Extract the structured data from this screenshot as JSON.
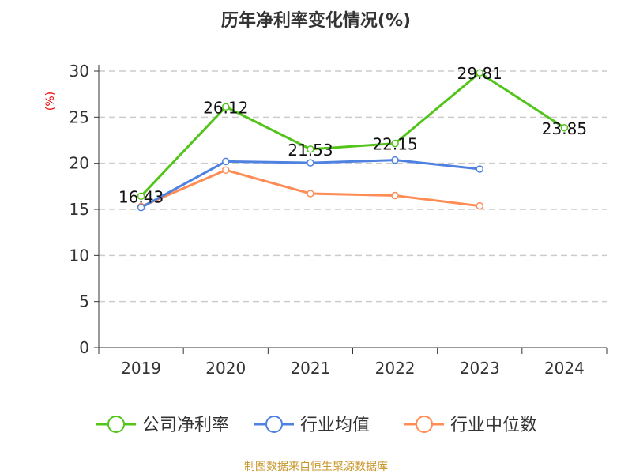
{
  "chart_data": {
    "type": "line",
    "title": "历年净利率变化情况(%)",
    "ylabel": "(%)",
    "xlabel": "",
    "categories": [
      "2019",
      "2020",
      "2021",
      "2022",
      "2023",
      "2024"
    ],
    "ylim": [
      0,
      30
    ],
    "yticks": [
      0,
      5,
      10,
      15,
      20,
      25,
      30
    ],
    "grid": true,
    "legend_position": "bottom",
    "series": [
      {
        "name": "公司净利率",
        "color": "#52c41a",
        "values": [
          16.43,
          26.12,
          21.53,
          22.15,
          29.81,
          23.85
        ],
        "labels": [
          "16.43",
          "26.12",
          "21.53",
          "22.15",
          "29.81",
          "23.85"
        ]
      },
      {
        "name": "行业均值",
        "color": "#4f81e0",
        "values": [
          15.2,
          20.2,
          20.05,
          20.35,
          19.37,
          null
        ]
      },
      {
        "name": "行业中位数",
        "color": "#ff8c55",
        "values": [
          15.3,
          19.26,
          16.71,
          16.5,
          15.37,
          null
        ]
      }
    ],
    "source": "制图数据来自恒生聚源数据库"
  }
}
